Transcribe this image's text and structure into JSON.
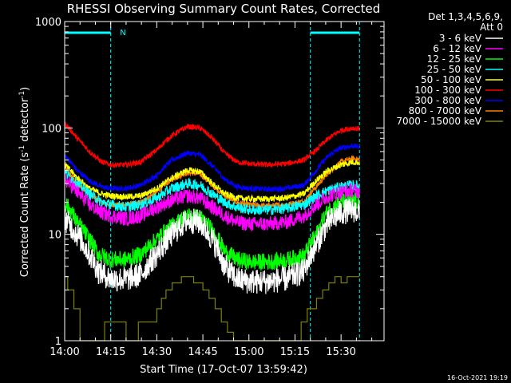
{
  "chart_data": {
    "type": "line",
    "title": "RHESSI Observing Summary Count Rates, Corrected",
    "xlabel": "Start Time (17-Oct-07 13:59:42)",
    "ylabel_prefix": "Corrected Count Rate (s",
    "ylabel_sup1": "-1",
    "ylabel_mid": " detector",
    "ylabel_sup2": "-1",
    "ylabel_suffix": ")",
    "y_scale": "log",
    "ylim": [
      1,
      1000
    ],
    "x_unit": "minutes after 14:00",
    "xlim": [
      0,
      104
    ],
    "x_ticks": [
      {
        "v": 0,
        "label": "14:00"
      },
      {
        "v": 15,
        "label": "14:15"
      },
      {
        "v": 30,
        "label": "14:30"
      },
      {
        "v": 45,
        "label": "14:45"
      },
      {
        "v": 60,
        "label": "15:00"
      },
      {
        "v": 75,
        "label": "15:15"
      },
      {
        "v": 90,
        "label": "15:30"
      }
    ],
    "y_ticks": [
      {
        "v": 1,
        "label": "1"
      },
      {
        "v": 10,
        "label": "10"
      },
      {
        "v": 100,
        "label": "100"
      },
      {
        "v": 1000,
        "label": "1000"
      }
    ],
    "legend_title_1": "Det 1,3,4,5,6,9,",
    "legend_title_2": "Att 0",
    "legend_position": "right",
    "series": [
      {
        "name": "3 - 6 keV",
        "color": "#ffffff",
        "noise": 0.12,
        "x": [
          0,
          4,
          8,
          11,
          15,
          20,
          25,
          30,
          35,
          40,
          44,
          48,
          52,
          56,
          60,
          66,
          72,
          78,
          82,
          86,
          90,
          94,
          96
        ],
        "y": [
          14,
          10,
          6.5,
          4.5,
          3.8,
          3.8,
          4.2,
          6.5,
          10,
          13.5,
          13,
          9,
          5,
          3.8,
          3.6,
          3.6,
          3.8,
          4.5,
          8,
          13,
          16,
          17,
          16
        ]
      },
      {
        "name": "6 - 12 keV",
        "color": "#ff00ff",
        "noise": 0.07,
        "x": [
          0,
          4,
          8,
          12,
          15,
          20,
          25,
          30,
          35,
          40,
          44,
          48,
          52,
          56,
          60,
          66,
          72,
          78,
          82,
          86,
          90,
          94,
          96
        ],
        "y": [
          33,
          25,
          19,
          16,
          15,
          14,
          15,
          18,
          21,
          23,
          22,
          18,
          15,
          13,
          12.5,
          12.5,
          13,
          15,
          19,
          23,
          25,
          26,
          25
        ]
      },
      {
        "name": "12 - 25 keV",
        "color": "#00ff00",
        "noise": 0.08,
        "x": [
          0,
          4,
          8,
          11,
          15,
          20,
          25,
          30,
          35,
          40,
          44,
          48,
          52,
          56,
          60,
          66,
          72,
          78,
          82,
          86,
          90,
          94,
          96
        ],
        "y": [
          20,
          13,
          9,
          6.5,
          5.8,
          5.8,
          6.5,
          9,
          12,
          15,
          14.5,
          11,
          7,
          5.8,
          5.5,
          5.5,
          5.7,
          6.3,
          10,
          17,
          20,
          21,
          20
        ]
      },
      {
        "name": "25 - 50 keV",
        "color": "#00ffff",
        "noise": 0.05,
        "x": [
          0,
          4,
          8,
          12,
          15,
          20,
          25,
          30,
          35,
          40,
          44,
          48,
          52,
          56,
          60,
          66,
          72,
          78,
          82,
          86,
          90,
          94,
          96
        ],
        "y": [
          38,
          30,
          24,
          20,
          19,
          18,
          19,
          22,
          27,
          30,
          29,
          24,
          20,
          18,
          17,
          17,
          17.5,
          19,
          23,
          26,
          28,
          29,
          28
        ]
      },
      {
        "name": "50 - 100 keV",
        "color": "#ffff00",
        "noise": 0.03,
        "x": [
          0,
          4,
          8,
          12,
          15,
          20,
          25,
          30,
          35,
          40,
          44,
          48,
          52,
          56,
          60,
          66,
          72,
          78,
          82,
          86,
          90,
          94,
          96
        ],
        "y": [
          45,
          34,
          27,
          24,
          23,
          22.5,
          23,
          27,
          34,
          40,
          39,
          30,
          24,
          22,
          21.5,
          21.5,
          22,
          24,
          32,
          40,
          45,
          48,
          47
        ]
      },
      {
        "name": "100 - 300 keV",
        "color": "#ff0000",
        "noise": 0.025,
        "x": [
          0,
          4,
          8,
          12,
          15,
          20,
          25,
          30,
          35,
          40,
          44,
          48,
          52,
          56,
          60,
          66,
          72,
          78,
          82,
          86,
          90,
          94,
          96
        ],
        "y": [
          110,
          80,
          60,
          48,
          45,
          45,
          48,
          62,
          85,
          103,
          100,
          80,
          58,
          48,
          46,
          45,
          46,
          50,
          62,
          80,
          95,
          100,
          98
        ]
      },
      {
        "name": "300 - 800 keV",
        "color": "#0000ff",
        "noise": 0.025,
        "x": [
          0,
          4,
          8,
          12,
          15,
          20,
          25,
          30,
          35,
          40,
          44,
          48,
          52,
          56,
          60,
          66,
          72,
          78,
          82,
          86,
          90,
          94,
          96
        ],
        "y": [
          55,
          40,
          32,
          28,
          27,
          27,
          29,
          36,
          50,
          58,
          56,
          44,
          33,
          28,
          27,
          26.5,
          27,
          29,
          40,
          55,
          65,
          68,
          66
        ]
      },
      {
        "name": "800 - 7000 keV",
        "color": "#ff8000",
        "noise": 0.025,
        "x": [
          0,
          4,
          8,
          12,
          15,
          20,
          25,
          30,
          35,
          40,
          44,
          48,
          52,
          56,
          60,
          66,
          72,
          78,
          82,
          86,
          90,
          94,
          96
        ],
        "y": [
          42,
          30,
          24,
          20,
          19,
          19,
          20,
          25,
          33,
          38,
          37,
          29,
          23,
          20,
          19,
          18.5,
          19,
          20.5,
          28,
          38,
          48,
          52,
          50
        ]
      },
      {
        "name": "7000 - 15000 keV",
        "color": "#808000",
        "noise": 0,
        "step": true,
        "x": [
          0,
          1,
          1,
          3,
          3,
          5,
          5,
          13,
          13,
          20,
          20,
          24,
          24,
          30,
          30,
          31.5,
          31.5,
          33,
          33,
          35,
          35,
          38,
          38,
          42,
          42,
          45,
          45,
          47,
          47,
          49,
          49,
          51,
          51,
          53,
          53,
          55,
          55,
          77,
          77,
          79,
          79,
          82,
          82,
          84,
          84,
          86,
          86,
          88,
          88,
          90,
          90,
          92,
          92,
          96
        ],
        "y": [
          4,
          4,
          3,
          3,
          2,
          2,
          1,
          1,
          1.5,
          1.5,
          1,
          1,
          1.5,
          1.5,
          2,
          2,
          2.5,
          2.5,
          3,
          3,
          3.5,
          3.5,
          4,
          4,
          3.5,
          3.5,
          3,
          3,
          2.5,
          2.5,
          2,
          2,
          1.5,
          1.5,
          1.2,
          1.2,
          1,
          1,
          1.5,
          1.5,
          2,
          2,
          2.5,
          2.5,
          3,
          3,
          3.5,
          3.5,
          4,
          4,
          3.5,
          3.5,
          4,
          4
        ]
      }
    ],
    "attenuator_bars": [
      {
        "x_start": 0,
        "x_end": 15
      },
      {
        "x_start": 80,
        "x_end": 96
      }
    ],
    "night_bounds": [
      0,
      15,
      80,
      96
    ],
    "night_label": "N",
    "night_label_x": 18,
    "colors": {
      "background": "#000000",
      "axes": "#ffffff",
      "night_marker": "#00ffff"
    }
  },
  "footer": {
    "timestamp": "16-Oct-2021 19:19"
  }
}
